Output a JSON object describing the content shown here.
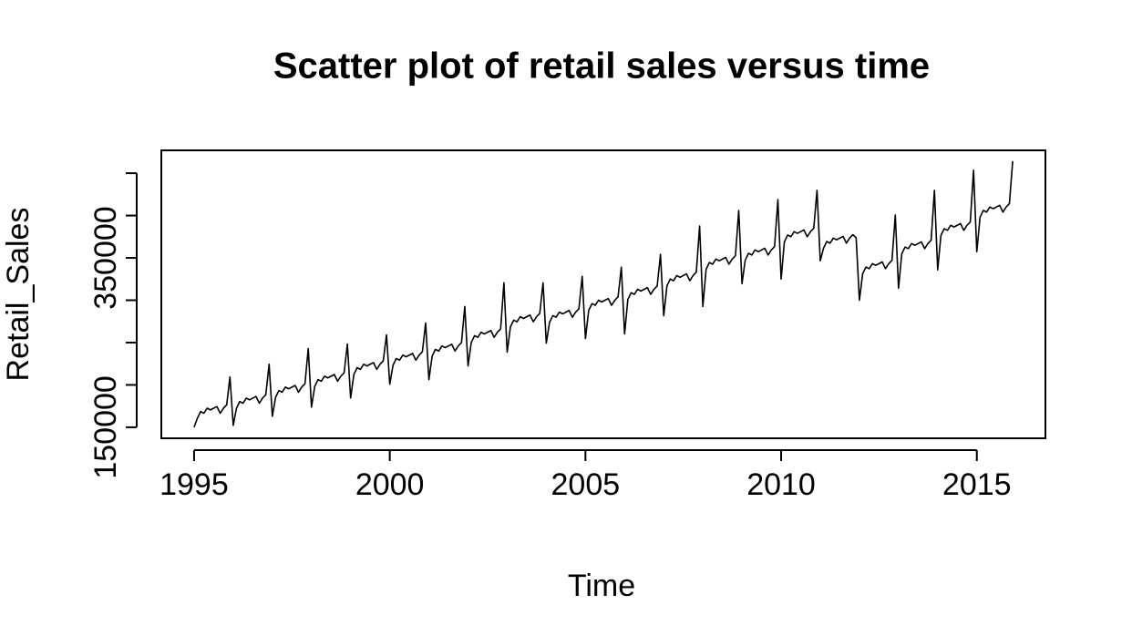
{
  "chart_data": {
    "type": "line",
    "title": "Scatter plot of retail sales versus time",
    "x_label": "Time",
    "y_label": "Retail_Sales",
    "x": [
      1995,
      1995.083,
      1995.167,
      1995.25,
      1995.333,
      1995.417,
      1995.5,
      1995.583,
      1995.667,
      1995.75,
      1995.833,
      1995.917,
      1996,
      1996.083,
      1996.167,
      1996.25,
      1996.333,
      1996.417,
      1996.5,
      1996.583,
      1996.667,
      1996.75,
      1996.833,
      1996.917,
      1997,
      1997.083,
      1997.167,
      1997.25,
      1997.333,
      1997.417,
      1997.5,
      1997.583,
      1997.667,
      1997.75,
      1997.833,
      1997.917,
      1998,
      1998.083,
      1998.167,
      1998.25,
      1998.333,
      1998.417,
      1998.5,
      1998.583,
      1998.667,
      1998.75,
      1998.833,
      1998.917,
      1999,
      1999.083,
      1999.167,
      1999.25,
      1999.333,
      1999.417,
      1999.5,
      1999.583,
      1999.667,
      1999.75,
      1999.833,
      1999.917,
      2000,
      2000.083,
      2000.167,
      2000.25,
      2000.333,
      2000.417,
      2000.5,
      2000.583,
      2000.667,
      2000.75,
      2000.833,
      2000.917,
      2001,
      2001.083,
      2001.167,
      2001.25,
      2001.333,
      2001.417,
      2001.5,
      2001.583,
      2001.667,
      2001.75,
      2001.833,
      2001.917,
      2002,
      2002.083,
      2002.167,
      2002.25,
      2002.333,
      2002.417,
      2002.5,
      2002.583,
      2002.667,
      2002.75,
      2002.833,
      2002.917,
      2003,
      2003.083,
      2003.167,
      2003.25,
      2003.333,
      2003.417,
      2003.5,
      2003.583,
      2003.667,
      2003.75,
      2003.833,
      2003.917,
      2004,
      2004.083,
      2004.167,
      2004.25,
      2004.333,
      2004.417,
      2004.5,
      2004.583,
      2004.667,
      2004.75,
      2004.833,
      2004.917,
      2005,
      2005.083,
      2005.167,
      2005.25,
      2005.333,
      2005.417,
      2005.5,
      2005.583,
      2005.667,
      2005.75,
      2005.833,
      2005.917,
      2006,
      2006.083,
      2006.167,
      2006.25,
      2006.333,
      2006.417,
      2006.5,
      2006.583,
      2006.667,
      2006.75,
      2006.833,
      2006.917,
      2007,
      2007.083,
      2007.167,
      2007.25,
      2007.333,
      2007.417,
      2007.5,
      2007.583,
      2007.667,
      2007.75,
      2007.833,
      2007.917,
      2008,
      2008.083,
      2008.167,
      2008.25,
      2008.333,
      2008.417,
      2008.5,
      2008.583,
      2008.667,
      2008.75,
      2008.833,
      2008.917,
      2009,
      2009.083,
      2009.167,
      2009.25,
      2009.333,
      2009.417,
      2009.5,
      2009.583,
      2009.667,
      2009.75,
      2009.833,
      2009.917,
      2010,
      2010.083,
      2010.167,
      2010.25,
      2010.333,
      2010.417,
      2010.5,
      2010.583,
      2010.667,
      2010.75,
      2010.833,
      2010.917,
      2011,
      2011.083,
      2011.167,
      2011.25,
      2011.333,
      2011.417,
      2011.5,
      2011.583,
      2011.667,
      2011.75,
      2011.833,
      2011.917,
      2012,
      2012.083,
      2012.167,
      2012.25,
      2012.333,
      2012.417,
      2012.5,
      2012.583,
      2012.667,
      2012.75,
      2012.833,
      2012.917,
      2013,
      2013.083,
      2013.167,
      2013.25,
      2013.333,
      2013.417,
      2013.5,
      2013.583,
      2013.667,
      2013.75,
      2013.833,
      2013.917,
      2014,
      2014.083,
      2014.167,
      2014.25,
      2014.333,
      2014.417,
      2014.5,
      2014.583,
      2014.667,
      2014.75,
      2014.833,
      2014.917,
      2015,
      2015.083,
      2015.167,
      2015.25,
      2015.333,
      2015.417,
      2015.5,
      2015.583,
      2015.667,
      2015.75,
      2015.833,
      2015.917
    ],
    "values": [
      150000,
      160500,
      168500,
      166500,
      172500,
      170500,
      172500,
      174500,
      166500,
      172500,
      176500,
      209400,
      152200,
      172400,
      180400,
      178400,
      184400,
      182400,
      184400,
      186400,
      178400,
      184400,
      188400,
      224500,
      163000,
      185400,
      193400,
      191400,
      197400,
      195400,
      197400,
      199400,
      191400,
      197400,
      201400,
      242900,
      173800,
      198300,
      206300,
      204300,
      210300,
      208300,
      210300,
      212300,
      204300,
      210300,
      214300,
      248300,
      184600,
      212400,
      220400,
      218400,
      224400,
      222400,
      224400,
      226400,
      218400,
      224400,
      228400,
      259100,
      200800,
      223200,
      231200,
      229200,
      235200,
      233200,
      235200,
      237200,
      229200,
      235200,
      239200,
      273100,
      206200,
      234000,
      242000,
      240000,
      246000,
      244000,
      246000,
      248000,
      240000,
      246000,
      250000,
      292600,
      222400,
      250200,
      258200,
      256200,
      262200,
      260200,
      262200,
      264200,
      256200,
      262200,
      266200,
      320600,
      238600,
      268500,
      276500,
      274500,
      280500,
      278500,
      280500,
      282500,
      274500,
      280500,
      284500,
      320600,
      249400,
      273900,
      281900,
      279900,
      285900,
      283900,
      285900,
      287900,
      279900,
      285900,
      289900,
      328200,
      254800,
      288000,
      296000,
      294000,
      300000,
      298000,
      300000,
      302000,
      294000,
      300000,
      304000,
      339000,
      260200,
      300900,
      308900,
      306900,
      312900,
      310900,
      312900,
      314900,
      306900,
      312900,
      316900,
      354100,
      281800,
      317100,
      325100,
      323100,
      329100,
      327100,
      329100,
      331100,
      323100,
      329100,
      333100,
      387600,
      292600,
      336600,
      344600,
      342600,
      348600,
      346600,
      348600,
      350600,
      342600,
      348600,
      352600,
      406000,
      319600,
      347400,
      355400,
      353400,
      359400,
      357400,
      359400,
      361400,
      353400,
      359400,
      363400,
      418900,
      325000,
      369000,
      377000,
      375000,
      381000,
      379000,
      381000,
      383000,
      375000,
      381000,
      385000,
      429700,
      346600,
      361400,
      369400,
      367400,
      373400,
      371400,
      373400,
      375400,
      367400,
      373400,
      377400,
      373600,
      300100,
      331200,
      339200,
      337200,
      343200,
      341200,
      343200,
      345200,
      337200,
      343200,
      347200,
      400600,
      314200,
      354900,
      362900,
      360900,
      366900,
      364900,
      366900,
      368900,
      360900,
      366900,
      370900,
      429700,
      335800,
      376500,
      384500,
      382500,
      388500,
      386500,
      388500,
      390500,
      382500,
      388500,
      392500,
      453500,
      357400,
      398100,
      406100,
      404100,
      410100,
      408100,
      410100,
      412100,
      404100,
      410100,
      414100,
      464300
    ],
    "color": "#000000",
    "xlim": [
      1994.163,
      2016.753
    ],
    "xticks": [
      1995,
      2000,
      2005,
      2010,
      2015
    ],
    "ylim": [
      137000,
      477000
    ],
    "yticks": [
      150000,
      350000
    ],
    "yticks_unlabeled": [
      200000,
      250000,
      300000,
      400000,
      450000
    ]
  }
}
